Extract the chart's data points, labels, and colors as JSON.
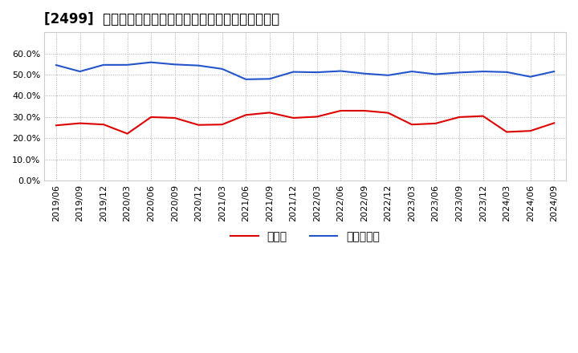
{
  "title": "[2499]  現預金、有利子負債の総資産に対する比率の推移",
  "x_labels": [
    "2019/06",
    "2019/09",
    "2019/12",
    "2020/03",
    "2020/06",
    "2020/09",
    "2020/12",
    "2021/03",
    "2021/06",
    "2021/09",
    "2021/12",
    "2022/03",
    "2022/06",
    "2022/09",
    "2022/12",
    "2023/03",
    "2023/06",
    "2023/09",
    "2023/12",
    "2024/03",
    "2024/06",
    "2024/09"
  ],
  "cash": [
    0.261,
    0.271,
    0.265,
    0.222,
    0.3,
    0.296,
    0.263,
    0.265,
    0.31,
    0.321,
    0.296,
    0.302,
    0.33,
    0.33,
    0.32,
    0.265,
    0.27,
    0.3,
    0.305,
    0.23,
    0.235,
    0.272
  ],
  "debt": [
    0.545,
    0.515,
    0.546,
    0.546,
    0.558,
    0.548,
    0.543,
    0.527,
    0.478,
    0.48,
    0.513,
    0.511,
    0.517,
    0.505,
    0.497,
    0.515,
    0.502,
    0.51,
    0.515,
    0.512,
    0.49,
    0.515
  ],
  "cash_color": "#dd0000",
  "debt_color": "#2255cc",
  "legend_cash": "現預金",
  "legend_debt": "有利子負債",
  "ylim": [
    0.0,
    0.7
  ],
  "yticks": [
    0.0,
    0.1,
    0.2,
    0.3,
    0.4,
    0.5,
    0.6
  ],
  "bg_color": "#ffffff",
  "plot_bg_color": "#ffffff",
  "grid_color": "#aaaaaa",
  "title_fontsize": 12,
  "tick_fontsize": 8,
  "legend_fontsize": 10
}
